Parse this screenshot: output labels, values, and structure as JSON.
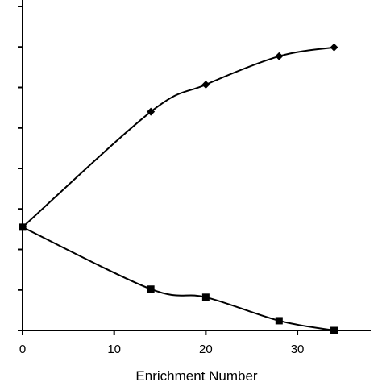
{
  "chart_data": {
    "type": "line",
    "title": "",
    "xlabel": "Enrichment Number",
    "ylabel": "",
    "xlim": [
      0,
      38
    ],
    "ylim": [
      0,
      8
    ],
    "x_ticks": [
      0,
      10,
      20,
      30
    ],
    "grid": false,
    "legend": "none",
    "colors": {
      "series": "#000000",
      "axis": "#000000",
      "background": "#ffffff"
    },
    "series": [
      {
        "marker": "diamond",
        "x": [
          0,
          14,
          20,
          28,
          34
        ],
        "y": [
          2.55,
          5.4,
          6.07,
          6.77,
          6.99
        ]
      },
      {
        "marker": "square",
        "x": [
          0,
          14,
          20,
          28,
          34
        ],
        "y": [
          2.55,
          1.02,
          0.82,
          0.24,
          0.0
        ]
      }
    ]
  }
}
